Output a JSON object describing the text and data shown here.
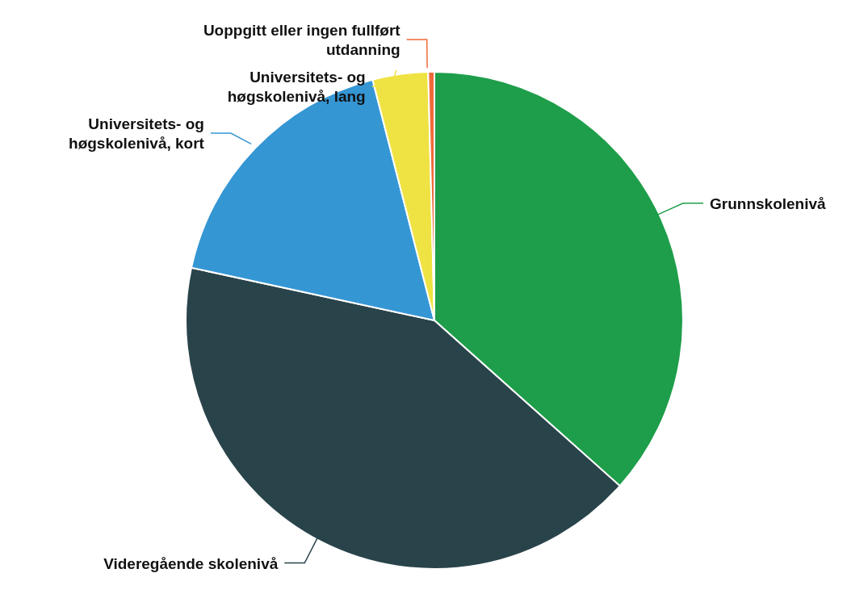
{
  "chart_data": {
    "type": "pie",
    "categories": [
      "Grunnskolenivå",
      "Videregående skolenivå",
      "Universitets- og høgskolenivå, kort",
      "Universitets- og høgskolenivå, lang",
      "Uoppgitt eller ingen fullført utdanning"
    ],
    "values": [
      36.6,
      41.8,
      17.6,
      3.6,
      0.4
    ],
    "colors": [
      "#1e9e4a",
      "#29434a",
      "#3596d4",
      "#efe343",
      "#ef6a3a"
    ]
  }
}
